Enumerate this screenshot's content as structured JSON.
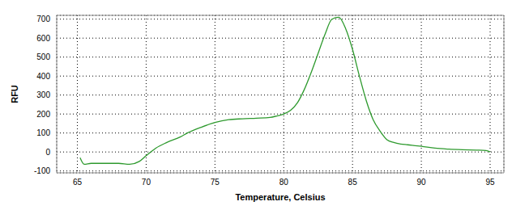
{
  "chart_data": {
    "type": "line",
    "x_label": "Temperature, Celsius",
    "y_label": "RFU",
    "x": [
      65.2,
      65.5,
      66,
      67,
      68,
      68.8,
      69.5,
      70,
      70.7,
      71.5,
      72.5,
      73,
      74,
      75,
      76,
      77,
      78,
      79,
      79.5,
      80,
      80.5,
      81,
      81.5,
      82,
      82.5,
      83,
      83.5,
      84,
      84.5,
      85,
      85.5,
      86,
      86.5,
      87,
      87.5,
      88,
      88.5,
      89,
      90,
      91,
      92,
      93,
      94,
      94.7,
      95
    ],
    "values": [
      -30,
      -65,
      -60,
      -60,
      -60,
      -65,
      -50,
      -20,
      20,
      50,
      80,
      100,
      130,
      155,
      170,
      175,
      178,
      182,
      190,
      200,
      220,
      260,
      330,
      420,
      520,
      620,
      700,
      710,
      650,
      540,
      400,
      270,
      170,
      110,
      65,
      50,
      42,
      38,
      30,
      20,
      15,
      12,
      10,
      8,
      0
    ],
    "color": "#2e9a2e",
    "xlim": [
      63.5,
      96
    ],
    "ylim": [
      -110,
      720
    ],
    "xticks": [
      65,
      70,
      75,
      80,
      85,
      90,
      95
    ],
    "yticks": [
      -100,
      0,
      100,
      200,
      300,
      400,
      500,
      600,
      700
    ],
    "grid": true
  }
}
